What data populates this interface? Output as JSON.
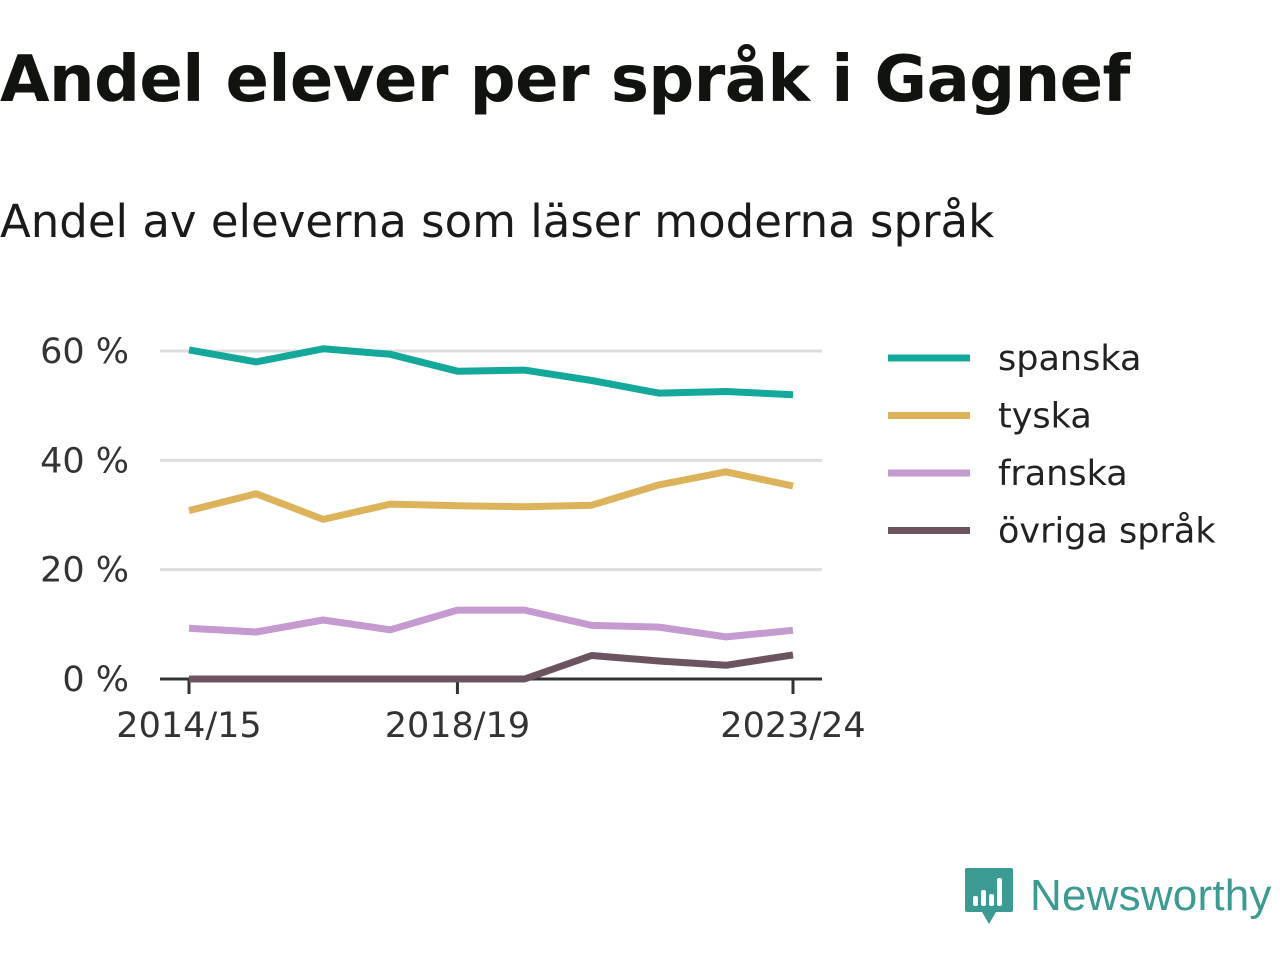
{
  "title": "Andel elever per språk i Gagnef",
  "subtitle": "Andel av eleverna som läser moderna språk",
  "brand": {
    "name": "Newsworthy",
    "color": "#3b9a92",
    "icon": "bar-chart-speech-bubble-icon"
  },
  "chart_data": {
    "type": "line",
    "x": [
      "2014/15",
      "2015/16",
      "2016/17",
      "2017/18",
      "2018/19",
      "2019/20",
      "2020/21",
      "2021/22",
      "2022/23",
      "2023/24"
    ],
    "x_tick_labels": [
      "2014/15",
      "2018/19",
      "2023/24"
    ],
    "y_ticks": [
      0,
      20,
      40,
      60
    ],
    "y_tick_labels": [
      "0 %",
      "20 %",
      "40 %",
      "60 %"
    ],
    "ylim": [
      0,
      60
    ],
    "grid": true,
    "legend_position": "right",
    "series": [
      {
        "name": "spanska",
        "color": "#14a89b",
        "values": [
          60.2,
          58.0,
          60.4,
          59.4,
          56.3,
          56.5,
          54.6,
          52.3,
          52.6,
          52.0
        ]
      },
      {
        "name": "tyska",
        "color": "#dcb35a",
        "values": [
          30.8,
          33.9,
          29.2,
          32.0,
          31.7,
          31.5,
          31.8,
          35.5,
          37.9,
          35.3
        ]
      },
      {
        "name": "franska",
        "color": "#c49ad0",
        "values": [
          9.3,
          8.6,
          10.8,
          9.0,
          12.6,
          12.6,
          9.8,
          9.5,
          7.7,
          8.9
        ]
      },
      {
        "name": "övriga språk",
        "color": "#6b545f",
        "values": [
          0.0,
          0.0,
          0.0,
          0.0,
          0.0,
          0.0,
          4.3,
          3.3,
          2.5,
          4.4
        ]
      }
    ]
  }
}
